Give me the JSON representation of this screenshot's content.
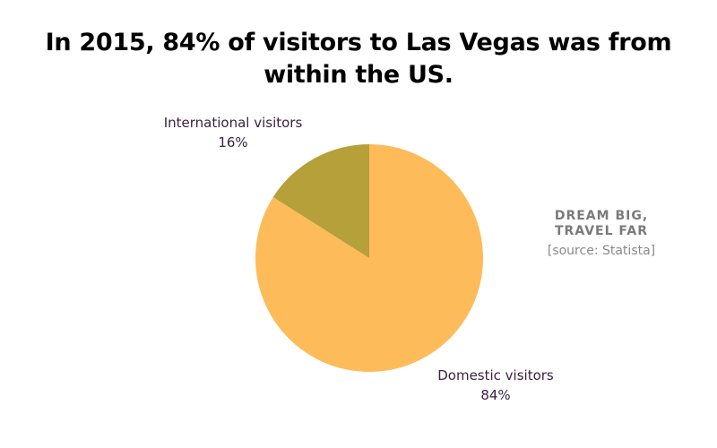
{
  "title": "In 2015, 84% of visitors to Las Vegas was from within the US.",
  "title_lines": [
    "In 2015, 84% of visitors to Las Vegas was from",
    "within the US."
  ],
  "branding": {
    "tagline_line1": "DREAM BIG,",
    "tagline_line2": "TRAVEL FAR",
    "source": "[source: Statista]"
  },
  "colors": {
    "international": "#B5A03A",
    "domestic": "#FDBB5A",
    "label_text": "#3A2340",
    "tagline": "#7A7A7A",
    "source": "#8A8A8A"
  },
  "slices": [
    {
      "label": "International visitors",
      "percent_label": "16%",
      "value": 16,
      "color": "#B5A03A"
    },
    {
      "label": "Domestic visitors",
      "percent_label": "84%",
      "value": 84,
      "color": "#FDBB5A"
    }
  ],
  "chart_data": {
    "type": "pie",
    "title": "In 2015, 84% of visitors to Las Vegas was from within the US.",
    "categories": [
      "International visitors",
      "Domestic visitors"
    ],
    "values": [
      16,
      84
    ],
    "unit": "%",
    "colors": [
      "#B5A03A",
      "#FDBB5A"
    ],
    "start_angle": "12 o'clock, International slice drawn counter-clockwise",
    "annotations": [
      "DREAM BIG, TRAVEL FAR",
      "[source: Statista]"
    ],
    "legend": "none (direct labels)"
  }
}
